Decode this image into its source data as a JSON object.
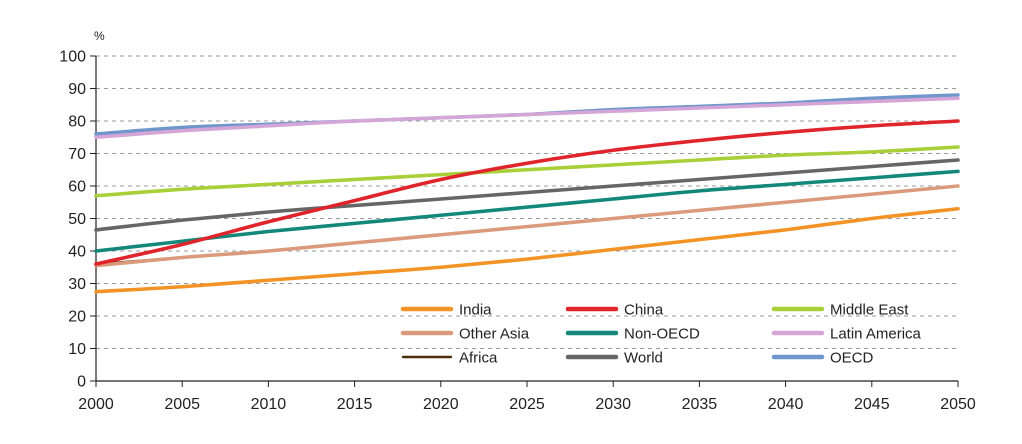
{
  "chart_data": {
    "type": "line",
    "title": "",
    "ylabel": "%",
    "xlabel": "",
    "x": [
      2000,
      2005,
      2010,
      2015,
      2020,
      2025,
      2030,
      2035,
      2040,
      2045,
      2050
    ],
    "x_ticks": [
      "2000",
      "2005",
      "2010",
      "2015",
      "2020",
      "2025",
      "2030",
      "2035",
      "2040",
      "2045",
      "2050"
    ],
    "y_ticks": [
      "0",
      "10",
      "20",
      "30",
      "40",
      "50",
      "60",
      "70",
      "80",
      "90",
      "100"
    ],
    "xlim": [
      2000,
      2050
    ],
    "ylim": [
      0,
      100
    ],
    "grid": "horizontal-dashed",
    "legend_position": "bottom-right",
    "series": [
      {
        "name": "India",
        "color": "#f39325",
        "values": [
          27.5,
          29,
          31,
          33,
          35,
          37.5,
          40.5,
          43.5,
          46.5,
          50,
          53
        ]
      },
      {
        "name": "China",
        "color": "#e0242b",
        "values": [
          36,
          42,
          49,
          55.5,
          62,
          67,
          71,
          74,
          76.5,
          78.5,
          80
        ]
      },
      {
        "name": "Middle East",
        "color": "#a9cf38",
        "values": [
          57,
          59,
          60.5,
          62,
          63.5,
          65,
          66.5,
          68,
          69.5,
          70.5,
          72
        ]
      },
      {
        "name": "Other Asia",
        "color": "#db9a7b",
        "values": [
          35.5,
          38,
          40,
          42.5,
          45,
          47.5,
          50,
          52.5,
          55,
          57.5,
          60
        ]
      },
      {
        "name": "Non-OECD",
        "color": "#13887a",
        "values": [
          40,
          43,
          46,
          48.5,
          51,
          53.5,
          56,
          58.5,
          60.5,
          62.5,
          64.5
        ]
      },
      {
        "name": "Latin America",
        "color": "#d5a5d7",
        "values": [
          75,
          77,
          78.5,
          80,
          81,
          82,
          83,
          84,
          85,
          86,
          87
        ]
      },
      {
        "name": "Africa",
        "color": "#4a2f0b",
        "values": [
          36,
          38,
          40,
          42.5,
          45,
          47.5,
          50,
          52.5,
          55,
          57.5,
          60
        ]
      },
      {
        "name": "World",
        "color": "#666666",
        "values": [
          46.5,
          49.5,
          52,
          54,
          56,
          58,
          60,
          62,
          64,
          66,
          68
        ]
      },
      {
        "name": "OECD",
        "color": "#6f97cc",
        "values": [
          76,
          78,
          79,
          80,
          81,
          82,
          83.5,
          84.5,
          85.5,
          87,
          88
        ]
      }
    ],
    "draw_order": [
      "Africa",
      "Other Asia",
      "India",
      "Non-OECD",
      "World",
      "Middle East",
      "China",
      "OECD",
      "Latin America"
    ]
  }
}
